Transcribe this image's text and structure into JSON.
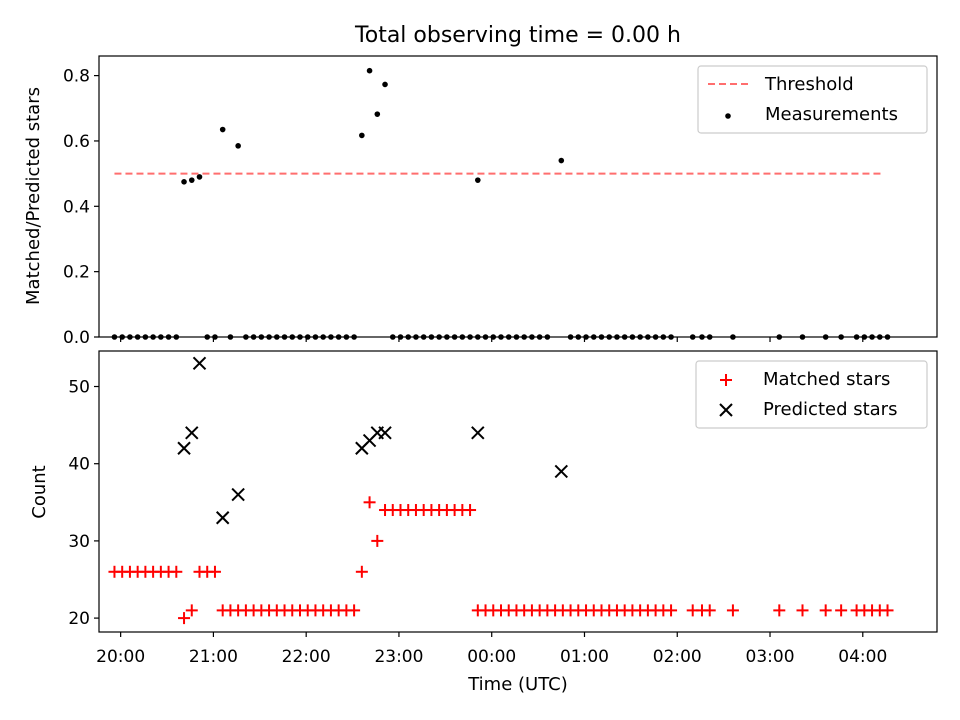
{
  "chart_data": [
    {
      "type": "scatter",
      "title": "Total observing time = 0.00 h",
      "ylabel": "Matched/Predicted stars",
      "xlabel": "",
      "xlim": [
        "19:46",
        "04:48"
      ],
      "ylim": [
        0,
        0.86
      ],
      "yticks": [
        0.0,
        0.2,
        0.4,
        0.6,
        0.8
      ],
      "ytick_labels": [
        "0.0",
        "0.2",
        "0.4",
        "0.6",
        "0.8"
      ],
      "grid": false,
      "legend_position": "top-right",
      "threshold": {
        "name": "Threshold",
        "value": 0.5,
        "x_range": [
          "19:56",
          "04:14"
        ],
        "color": "#ff6e6e",
        "style": "dashed"
      },
      "series": [
        {
          "name": "Measurements",
          "color": "#000000",
          "marker": "dot",
          "points": [
            [
              "19:56",
              0
            ],
            [
              "20:01",
              0
            ],
            [
              "20:06",
              0
            ],
            [
              "20:11",
              0
            ],
            [
              "20:16",
              0
            ],
            [
              "20:21",
              0
            ],
            [
              "20:26",
              0
            ],
            [
              "20:31",
              0
            ],
            [
              "20:36",
              0
            ],
            [
              "20:41",
              0.475
            ],
            [
              "20:46",
              0.48
            ],
            [
              "20:51",
              0.49
            ],
            [
              "20:56",
              0
            ],
            [
              "21:01",
              0
            ],
            [
              "21:06",
              0.635
            ],
            [
              "21:11",
              0
            ],
            [
              "21:16",
              0.585
            ],
            [
              "21:21",
              0
            ],
            [
              "21:26",
              0
            ],
            [
              "21:31",
              0
            ],
            [
              "21:36",
              0
            ],
            [
              "21:41",
              0
            ],
            [
              "21:46",
              0
            ],
            [
              "21:51",
              0
            ],
            [
              "21:56",
              0
            ],
            [
              "22:01",
              0
            ],
            [
              "22:06",
              0
            ],
            [
              "22:11",
              0
            ],
            [
              "22:16",
              0
            ],
            [
              "22:21",
              0
            ],
            [
              "22:26",
              0
            ],
            [
              "22:31",
              0
            ],
            [
              "22:36",
              0.617
            ],
            [
              "22:41",
              0.815
            ],
            [
              "22:46",
              0.682
            ],
            [
              "22:51",
              0.773
            ],
            [
              "22:56",
              0
            ],
            [
              "23:01",
              0
            ],
            [
              "23:06",
              0
            ],
            [
              "23:11",
              0
            ],
            [
              "23:16",
              0
            ],
            [
              "23:21",
              0
            ],
            [
              "23:26",
              0
            ],
            [
              "23:31",
              0
            ],
            [
              "23:36",
              0
            ],
            [
              "23:41",
              0
            ],
            [
              "23:46",
              0
            ],
            [
              "23:51",
              0
            ],
            [
              "23:56",
              0
            ],
            [
              "00:01",
              0
            ],
            [
              "00:06",
              0
            ],
            [
              "00:11",
              0
            ],
            [
              "00:16",
              0
            ],
            [
              "00:21",
              0
            ],
            [
              "00:26",
              0
            ],
            [
              "23:51",
              0.48
            ],
            [
              "00:31",
              0
            ],
            [
              "00:36",
              0
            ],
            [
              "00:45",
              0.54
            ],
            [
              "00:51",
              0
            ],
            [
              "00:56",
              0
            ],
            [
              "01:01",
              0
            ],
            [
              "01:06",
              0
            ],
            [
              "01:11",
              0
            ],
            [
              "01:16",
              0
            ],
            [
              "01:21",
              0
            ],
            [
              "01:26",
              0
            ],
            [
              "01:31",
              0
            ],
            [
              "01:36",
              0
            ],
            [
              "01:41",
              0
            ],
            [
              "01:46",
              0
            ],
            [
              "01:51",
              0
            ],
            [
              "01:56",
              0
            ],
            [
              "02:10",
              0
            ],
            [
              "02:16",
              0
            ],
            [
              "02:21",
              0
            ],
            [
              "02:36",
              0
            ],
            [
              "03:06",
              0
            ],
            [
              "03:21",
              0
            ],
            [
              "03:36",
              0
            ],
            [
              "03:46",
              0
            ],
            [
              "03:56",
              0
            ],
            [
              "04:01",
              0
            ],
            [
              "04:06",
              0
            ],
            [
              "04:11",
              0
            ],
            [
              "04:16",
              0
            ]
          ]
        }
      ]
    },
    {
      "type": "scatter",
      "title": "",
      "ylabel": "Count",
      "xlabel": "Time (UTC)",
      "xlim": [
        "19:46",
        "04:48"
      ],
      "ylim": [
        18.2,
        54.6
      ],
      "yticks": [
        20,
        30,
        40,
        50
      ],
      "ytick_labels": [
        "20",
        "30",
        "40",
        "50"
      ],
      "xticks": [
        "20:00",
        "21:00",
        "22:00",
        "23:00",
        "00:00",
        "01:00",
        "02:00",
        "03:00",
        "04:00"
      ],
      "grid": false,
      "legend_position": "top-right",
      "series": [
        {
          "name": "Matched stars",
          "color": "#ff0000",
          "marker": "plus",
          "points": [
            [
              "19:56",
              26
            ],
            [
              "20:01",
              26
            ],
            [
              "20:06",
              26
            ],
            [
              "20:11",
              26
            ],
            [
              "20:16",
              26
            ],
            [
              "20:21",
              26
            ],
            [
              "20:26",
              26
            ],
            [
              "20:31",
              26
            ],
            [
              "20:36",
              26
            ],
            [
              "20:41",
              20
            ],
            [
              "20:46",
              21
            ],
            [
              "20:51",
              26
            ],
            [
              "20:56",
              26
            ],
            [
              "21:01",
              26
            ],
            [
              "21:06",
              21
            ],
            [
              "21:11",
              21
            ],
            [
              "21:16",
              21
            ],
            [
              "21:21",
              21
            ],
            [
              "21:26",
              21
            ],
            [
              "21:31",
              21
            ],
            [
              "21:36",
              21
            ],
            [
              "21:41",
              21
            ],
            [
              "21:46",
              21
            ],
            [
              "21:51",
              21
            ],
            [
              "21:56",
              21
            ],
            [
              "22:01",
              21
            ],
            [
              "22:06",
              21
            ],
            [
              "22:11",
              21
            ],
            [
              "22:16",
              21
            ],
            [
              "22:21",
              21
            ],
            [
              "22:26",
              21
            ],
            [
              "22:31",
              21
            ],
            [
              "22:36",
              26
            ],
            [
              "22:41",
              35
            ],
            [
              "22:46",
              30
            ],
            [
              "22:51",
              34
            ],
            [
              "22:56",
              34
            ],
            [
              "23:01",
              34
            ],
            [
              "23:06",
              34
            ],
            [
              "23:11",
              34
            ],
            [
              "23:16",
              34
            ],
            [
              "23:21",
              34
            ],
            [
              "23:26",
              34
            ],
            [
              "23:31",
              34
            ],
            [
              "23:36",
              34
            ],
            [
              "23:41",
              34
            ],
            [
              "23:46",
              34
            ],
            [
              "23:51",
              21
            ],
            [
              "23:56",
              21
            ],
            [
              "00:01",
              21
            ],
            [
              "00:06",
              21
            ],
            [
              "00:11",
              21
            ],
            [
              "00:16",
              21
            ],
            [
              "00:21",
              21
            ],
            [
              "00:26",
              21
            ],
            [
              "00:31",
              21
            ],
            [
              "00:36",
              21
            ],
            [
              "00:41",
              21
            ],
            [
              "00:46",
              21
            ],
            [
              "00:51",
              21
            ],
            [
              "00:56",
              21
            ],
            [
              "01:01",
              21
            ],
            [
              "01:06",
              21
            ],
            [
              "01:11",
              21
            ],
            [
              "01:16",
              21
            ],
            [
              "01:21",
              21
            ],
            [
              "01:26",
              21
            ],
            [
              "01:31",
              21
            ],
            [
              "01:36",
              21
            ],
            [
              "01:41",
              21
            ],
            [
              "01:46",
              21
            ],
            [
              "01:51",
              21
            ],
            [
              "01:56",
              21
            ],
            [
              "02:10",
              21
            ],
            [
              "02:16",
              21
            ],
            [
              "02:21",
              21
            ],
            [
              "02:36",
              21
            ],
            [
              "03:06",
              21
            ],
            [
              "03:21",
              21
            ],
            [
              "03:36",
              21
            ],
            [
              "03:46",
              21
            ],
            [
              "03:56",
              21
            ],
            [
              "04:01",
              21
            ],
            [
              "04:06",
              21
            ],
            [
              "04:11",
              21
            ],
            [
              "04:16",
              21
            ]
          ]
        },
        {
          "name": "Predicted stars",
          "color": "#000000",
          "marker": "x",
          "points": [
            [
              "20:41",
              42
            ],
            [
              "20:46",
              44
            ],
            [
              "20:51",
              53
            ],
            [
              "21:06",
              33
            ],
            [
              "21:16",
              36
            ],
            [
              "22:36",
              42
            ],
            [
              "22:41",
              43
            ],
            [
              "22:46",
              44
            ],
            [
              "22:51",
              44
            ],
            [
              "23:51",
              44
            ],
            [
              "00:45",
              39
            ]
          ]
        }
      ]
    }
  ]
}
